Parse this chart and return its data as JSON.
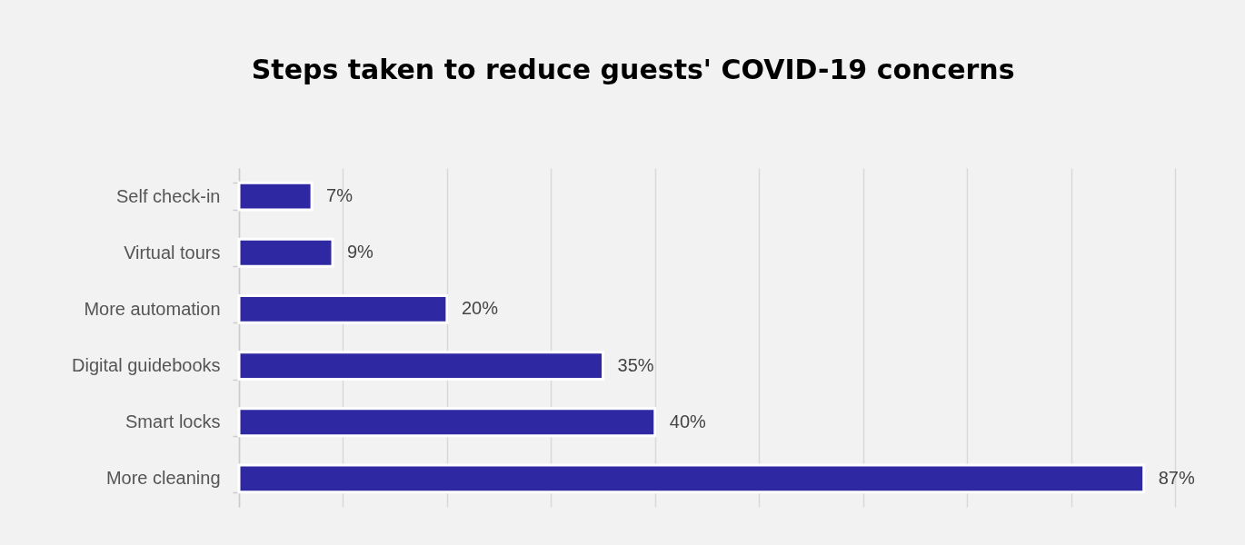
{
  "chart_data": {
    "type": "bar",
    "orientation": "horizontal",
    "title": "Steps taken to reduce guests' COVID-19  concerns",
    "categories": [
      "Self check-in",
      "Virtual tours",
      "More automation",
      "Digital guidebooks",
      "Smart locks",
      "More cleaning"
    ],
    "values": [
      7,
      9,
      20,
      35,
      40,
      87
    ],
    "value_labels": [
      "7%",
      "9%",
      "20%",
      "35%",
      "40%",
      "87%"
    ],
    "color": "#2e29a3",
    "xlim": [
      0,
      90
    ],
    "xticks": [
      {
        "value": 0,
        "label": null
      },
      {
        "value": 10,
        "label": null
      },
      {
        "value": 20,
        "label": null
      },
      {
        "value": 30,
        "label": null
      },
      {
        "value": 40,
        "label": null
      },
      {
        "value": 50,
        "label": null
      },
      {
        "value": 60,
        "label": null
      },
      {
        "value": 70,
        "label": null
      },
      {
        "value": 80,
        "label": null
      },
      {
        "value": 90,
        "label": null
      }
    ],
    "tick_labels": "y",
    "grid": "x"
  }
}
